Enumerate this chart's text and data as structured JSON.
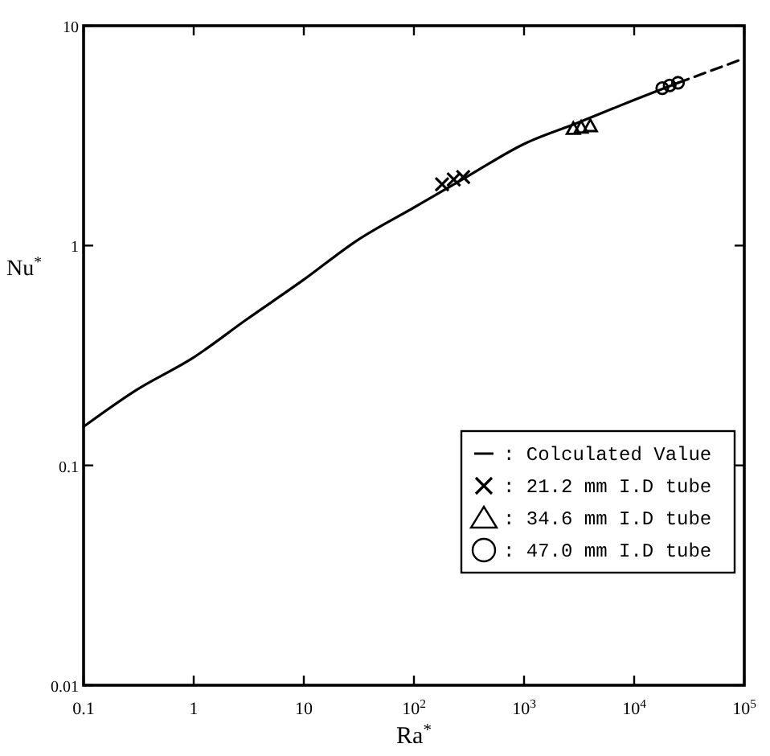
{
  "chart_data": {
    "type": "line",
    "xlabel": "Ra$^{*}$",
    "ylabel": "Nu$^{*}$",
    "log": "xy",
    "xlim": [
      0.1,
      100000
    ],
    "ylim": [
      0.01,
      10
    ],
    "xticks": [
      0.1,
      1,
      10,
      {
        "value": 100,
        "label": "10$^{2}$"
      },
      {
        "value": 1000,
        "label": "10$^{3}$"
      },
      {
        "value": 10000,
        "label": "10$^{4}$"
      },
      {
        "value": 100000,
        "label": "10$^{5}$"
      }
    ],
    "yticks": [
      0.01,
      0.1,
      1,
      10
    ],
    "grid": false,
    "legend": "bottom right",
    "series": [
      {
        "name": ": Colculated Value",
        "color": "#000000",
        "line_style": "solid",
        "marker": "none",
        "x": [
          0.1,
          0.3,
          1,
          3,
          10,
          30,
          100,
          300,
          1000,
          3000,
          10000,
          25000
        ],
        "values": [
          0.15,
          0.22,
          0.31,
          0.46,
          0.7,
          1.05,
          1.49,
          2.05,
          2.9,
          3.6,
          4.6,
          5.5
        ]
      },
      {
        "color": "#000000",
        "line_style": "dashed",
        "marker": "none",
        "x": [
          25000,
          100000
        ],
        "values": [
          5.5,
          7.1
        ]
      },
      {
        "name": ": 21.2 mm I.D tube",
        "type": "scatter",
        "color": "#000000",
        "marker": "cross",
        "x": [
          180,
          230,
          280
        ],
        "values": [
          1.9,
          2.0,
          2.05
        ]
      },
      {
        "name": ": 34.6 mm I.D tube",
        "type": "scatter",
        "color": "#000000",
        "marker": "triangle",
        "x": [
          2800,
          3300,
          4000
        ],
        "values": [
          3.4,
          3.45,
          3.5
        ]
      },
      {
        "name": ": 47.0 mm I.D tube",
        "type": "scatter",
        "color": "#000000",
        "marker": "circle",
        "x": [
          18000,
          21000,
          25000
        ],
        "values": [
          5.2,
          5.35,
          5.5
        ]
      }
    ]
  }
}
